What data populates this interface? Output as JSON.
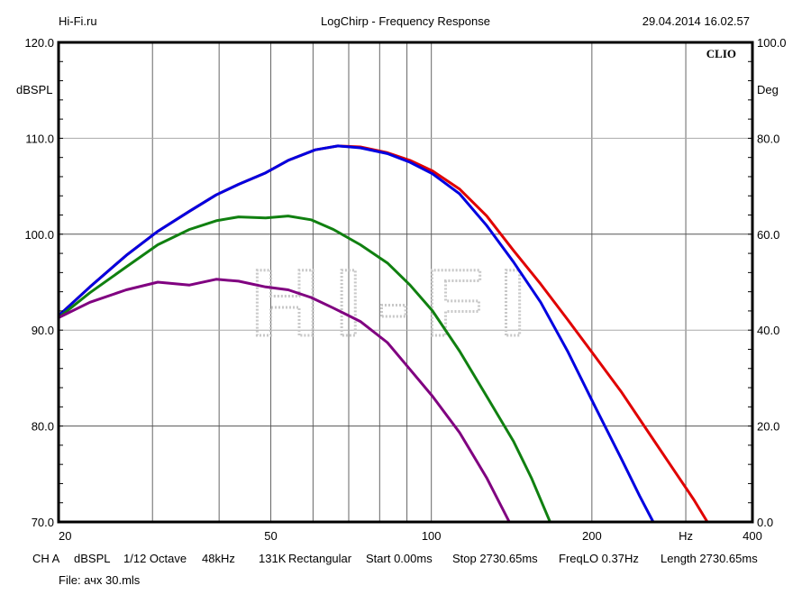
{
  "header": {
    "left": "Hi-Fi.ru",
    "center": "LogChirp - Frequency Response",
    "right": "29.04.2014 16.02.57"
  },
  "brand": "CLIO",
  "watermark": "HI-FI",
  "footer": {
    "items": [
      "CH A",
      "dBSPL",
      "1/12 Octave",
      "48kHz",
      "131K",
      "Rectangular",
      "Start 0.00ms",
      "Stop 2730.65ms",
      "FreqLO 0.37Hz",
      "Length 2730.65ms"
    ],
    "file": "File: ачх 30.mls"
  },
  "chart_data": {
    "type": "line",
    "title": "LogChirp - Frequency Response",
    "xscale": "log",
    "xlim": [
      20,
      400
    ],
    "ylim": [
      70,
      120
    ],
    "y2lim": [
      0,
      100
    ],
    "ylabel": "dBSPL",
    "y2label": "Deg",
    "xlabel": "Hz",
    "xticks": [
      {
        "v": 20,
        "label": "20"
      },
      {
        "v": 50,
        "label": "50"
      },
      {
        "v": 100,
        "label": "100"
      },
      {
        "v": 200,
        "label": "200"
      },
      {
        "v": 300,
        "label": "Hz"
      },
      {
        "v": 400,
        "label": "400"
      }
    ],
    "xgrid": [
      30,
      40,
      50,
      60,
      70,
      80,
      90,
      100,
      200,
      300
    ],
    "yticks": [
      {
        "v": 120,
        "label": "120.0"
      },
      {
        "v": 110,
        "label": "110.0"
      },
      {
        "v": 100,
        "label": "100.0"
      },
      {
        "v": 90,
        "label": "90.0"
      },
      {
        "v": 80,
        "label": "80.0"
      },
      {
        "v": 70,
        "label": "70.0"
      }
    ],
    "y2ticks": [
      {
        "v": 100,
        "label": "100.0"
      },
      {
        "v": 80,
        "label": "80.0"
      },
      {
        "v": 60,
        "label": "60.0"
      },
      {
        "v": 40,
        "label": "40.0"
      },
      {
        "v": 20,
        "label": "20.0"
      },
      {
        "v": 0,
        "label": "0.0"
      }
    ],
    "series": [
      {
        "name": "red",
        "color": "#e00000",
        "x": [
          20,
          22.9,
          26.8,
          30.7,
          35.2,
          39.5,
          43.5,
          48.9,
          53.9,
          60.6,
          66.8,
          73.6,
          82.7,
          91.2,
          100.5,
          113,
          127,
          142.6,
          160.3,
          180.1,
          202.5,
          227.5,
          255.6,
          287.4,
          310.7,
          329.3
        ],
        "y": [
          91.5,
          94.5,
          97.8,
          100.3,
          102.4,
          104.1,
          105.2,
          106.4,
          107.7,
          108.8,
          109.2,
          109.1,
          108.5,
          107.7,
          106.6,
          104.7,
          101.9,
          98.3,
          94.8,
          91.1,
          87.3,
          83.5,
          79.3,
          75.1,
          72.3,
          70.0
        ]
      },
      {
        "name": "blue",
        "color": "#0000e0",
        "x": [
          20,
          22.9,
          26.8,
          30.7,
          35.2,
          39.5,
          43.5,
          48.9,
          53.9,
          60.6,
          66.8,
          73.6,
          82.7,
          91.2,
          100.5,
          113,
          127,
          142.6,
          160.3,
          180.1,
          202.5,
          227.5,
          245.9,
          260.6
        ],
        "y": [
          91.5,
          94.5,
          97.8,
          100.3,
          102.4,
          104.1,
          105.2,
          106.4,
          107.7,
          108.8,
          109.2,
          109.0,
          108.4,
          107.5,
          106.3,
          104.2,
          100.9,
          97.1,
          92.9,
          87.8,
          82.1,
          76.5,
          72.7,
          70.0
        ]
      },
      {
        "name": "green",
        "color": "#108010",
        "x": [
          20,
          22.9,
          26.8,
          30.7,
          35.2,
          39.5,
          43.5,
          48.9,
          53.9,
          59.5,
          65.5,
          73.6,
          82.7,
          91.2,
          100.5,
          113,
          127,
          142.6,
          154,
          166.7
        ],
        "y": [
          91.3,
          93.9,
          96.6,
          98.9,
          100.5,
          101.4,
          101.8,
          101.7,
          101.9,
          101.5,
          100.5,
          98.9,
          97.0,
          94.7,
          92.0,
          87.8,
          83.1,
          78.4,
          74.6,
          70.1
        ]
      },
      {
        "name": "purple",
        "color": "#800080",
        "x": [
          20,
          22.9,
          26.8,
          30.7,
          35.2,
          39.5,
          43.5,
          48.9,
          53.9,
          59.5,
          65.5,
          73.6,
          82.7,
          91.2,
          100.5,
          113,
          127,
          140
        ],
        "y": [
          91.3,
          92.9,
          94.2,
          95.0,
          94.7,
          95.3,
          95.1,
          94.5,
          94.2,
          93.4,
          92.3,
          90.9,
          88.7,
          85.9,
          83.1,
          79.3,
          74.6,
          70.0
        ]
      }
    ]
  }
}
